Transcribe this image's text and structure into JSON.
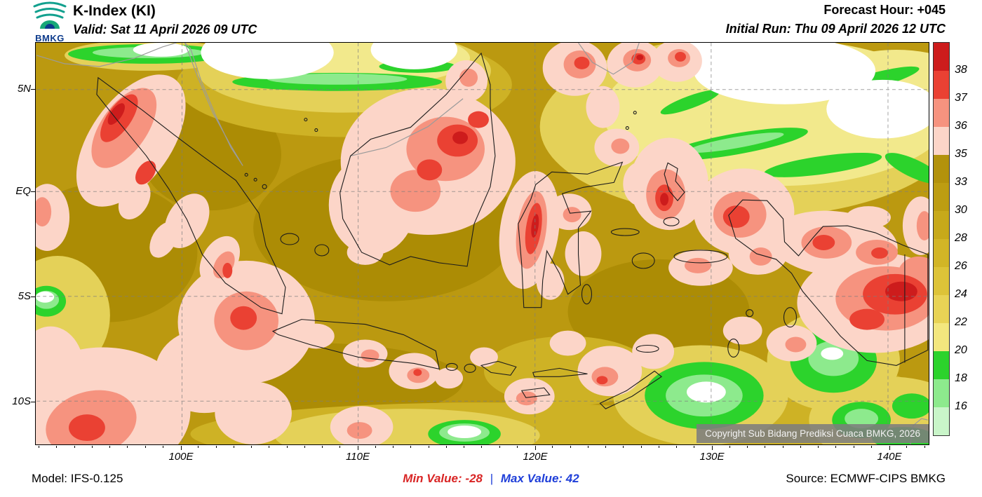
{
  "header": {
    "logo_text": "BMKG",
    "title": "K-Index (KI)",
    "valid": "Valid: Sat 11 April 2026 09 UTC",
    "forecast_hour": "Forecast Hour: +045",
    "initial_run": "Initial Run: Thu 09 April 2026 12 UTC"
  },
  "map": {
    "lat_ticks": [
      "5N",
      "EQ",
      "5S",
      "10S"
    ],
    "lon_ticks": [
      "100E",
      "110E",
      "120E",
      "130E",
      "140E"
    ],
    "copyright": "Copyright Sub Bidang Prediksi Cuaca BMKG, 2026"
  },
  "colorbar": {
    "tick_labels": [
      "38",
      "37",
      "36",
      "35",
      "33",
      "30",
      "28",
      "26",
      "24",
      "22",
      "20",
      "18",
      "16"
    ],
    "segment_colors_top_to_bottom": [
      "#cd1c1c",
      "#ea4133",
      "#f6937f",
      "#fcd5c8",
      "#b3920c",
      "#bd9d12",
      "#c7a91a",
      "#d2b526",
      "#ddc338",
      "#e8d355",
      "#f3e77e",
      "#2cd32c",
      "#8dea8d",
      "#c9f5c9"
    ]
  },
  "footer": {
    "model": "Model: IFS-0.125",
    "min_label": "Min Value:",
    "min_value": "-28",
    "separator": "|",
    "max_label": "Max Value:",
    "max_value": "42",
    "source": "Source: ECMWF-CIPS BMKG"
  }
}
